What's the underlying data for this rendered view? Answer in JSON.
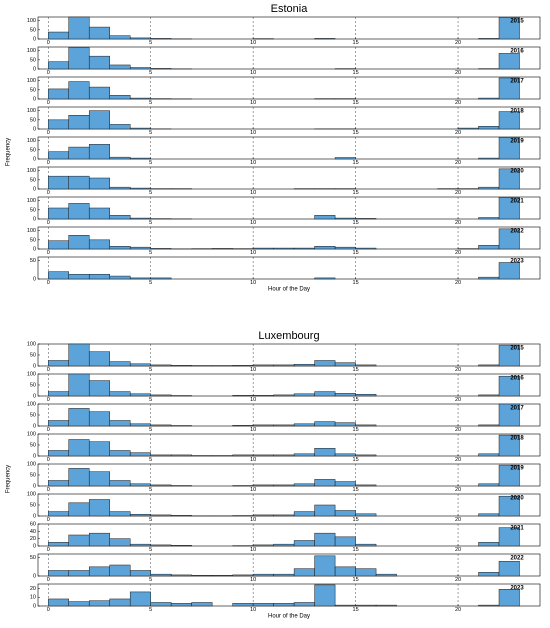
{
  "chart_data": [
    {
      "type": "histogram",
      "title": "Estonia",
      "xlabel": "Hour of the Day",
      "ylabel": "Frequency",
      "color": "#5ba3d9",
      "grid": true,
      "bins": [
        0,
        1,
        2,
        3,
        4,
        5,
        6,
        7,
        8,
        9,
        10,
        11,
        12,
        13,
        14,
        15,
        16,
        17,
        18,
        19,
        20,
        21,
        22,
        23
      ],
      "xlim": [
        -0.5,
        24
      ],
      "xticks": [
        0,
        5,
        10,
        15,
        20
      ],
      "panels": [
        {
          "label": "2015",
          "ylim": [
            0,
            120
          ],
          "yticks": [
            0,
            50,
            100
          ],
          "values": [
            38,
            120,
            65,
            18,
            6,
            3,
            1,
            0,
            0,
            0,
            2,
            0,
            0,
            3,
            0,
            0,
            0,
            0,
            0,
            0,
            0,
            3,
            118
          ]
        },
        {
          "label": "2016",
          "ylim": [
            0,
            120
          ],
          "yticks": [
            0,
            50,
            100
          ],
          "values": [
            40,
            118,
            70,
            22,
            8,
            3,
            1,
            0,
            0,
            0,
            0,
            0,
            0,
            0,
            2,
            0,
            0,
            0,
            0,
            0,
            0,
            2,
            85
          ]
        },
        {
          "label": "2017",
          "ylim": [
            0,
            120
          ],
          "yticks": [
            0,
            50,
            100
          ],
          "values": [
            55,
            95,
            65,
            20,
            5,
            2,
            1,
            0,
            0,
            0,
            0,
            0,
            0,
            2,
            2,
            0,
            0,
            0,
            0,
            0,
            0,
            5,
            115
          ]
        },
        {
          "label": "2018",
          "ylim": [
            0,
            120
          ],
          "yticks": [
            0,
            50,
            100
          ],
          "values": [
            50,
            75,
            100,
            25,
            5,
            1,
            0,
            0,
            0,
            0,
            0,
            0,
            0,
            1,
            1,
            0,
            0,
            0,
            0,
            0,
            5,
            15,
            95
          ]
        },
        {
          "label": "2019",
          "ylim": [
            0,
            120
          ],
          "yticks": [
            0,
            50,
            100
          ],
          "values": [
            40,
            65,
            80,
            10,
            5,
            0,
            0,
            0,
            0,
            0,
            0,
            0,
            0,
            0,
            8,
            0,
            0,
            0,
            0,
            0,
            0,
            5,
            118
          ]
        },
        {
          "label": "2020",
          "ylim": [
            0,
            120
          ],
          "yticks": [
            0,
            50,
            100
          ],
          "values": [
            70,
            70,
            60,
            10,
            5,
            2,
            2,
            0,
            0,
            0,
            0,
            0,
            2,
            2,
            2,
            0,
            0,
            0,
            0,
            2,
            2,
            10,
            110
          ]
        },
        {
          "label": "2021",
          "ylim": [
            0,
            120
          ],
          "yticks": [
            0,
            50,
            100
          ],
          "values": [
            60,
            85,
            60,
            20,
            5,
            2,
            1,
            0,
            0,
            0,
            0,
            0,
            0,
            20,
            5,
            3,
            0,
            0,
            0,
            0,
            0,
            8,
            118
          ]
        },
        {
          "label": "2022",
          "ylim": [
            0,
            120
          ],
          "yticks": [
            0,
            50,
            100
          ],
          "values": [
            45,
            75,
            50,
            15,
            10,
            3,
            1,
            2,
            3,
            2,
            5,
            5,
            5,
            15,
            10,
            5,
            0,
            0,
            0,
            0,
            2,
            20,
            110
          ]
        },
        {
          "label": "2023",
          "ylim": [
            0,
            60
          ],
          "yticks": [
            0,
            50
          ],
          "values": [
            20,
            13,
            13,
            8,
            3,
            3,
            0,
            0,
            0,
            0,
            0,
            0,
            0,
            3,
            0,
            0,
            0,
            0,
            0,
            0,
            0,
            5,
            45
          ]
        }
      ]
    },
    {
      "type": "histogram",
      "title": "Luxembourg",
      "xlabel": "Hour of the Day",
      "ylabel": "Frequency",
      "color": "#5ba3d9",
      "grid": true,
      "bins": [
        0,
        1,
        2,
        3,
        4,
        5,
        6,
        7,
        8,
        9,
        10,
        11,
        12,
        13,
        14,
        15,
        16,
        17,
        18,
        19,
        20,
        21,
        22,
        23
      ],
      "xlim": [
        -0.5,
        24
      ],
      "xticks": [
        0,
        5,
        10,
        15,
        20
      ],
      "panels": [
        {
          "label": "2015",
          "ylim": [
            0,
            100
          ],
          "yticks": [
            0,
            50,
            100
          ],
          "values": [
            25,
            100,
            65,
            20,
            10,
            5,
            3,
            2,
            2,
            3,
            5,
            5,
            8,
            25,
            15,
            5,
            0,
            0,
            0,
            0,
            0,
            5,
            95
          ]
        },
        {
          "label": "2016",
          "ylim": [
            0,
            100
          ],
          "yticks": [
            0,
            50,
            100
          ],
          "values": [
            20,
            100,
            70,
            20,
            10,
            5,
            2,
            0,
            0,
            3,
            3,
            5,
            10,
            20,
            12,
            8,
            0,
            0,
            0,
            0,
            0,
            5,
            90
          ]
        },
        {
          "label": "2017",
          "ylim": [
            0,
            100
          ],
          "yticks": [
            0,
            50,
            100
          ],
          "values": [
            25,
            80,
            65,
            25,
            10,
            5,
            2,
            0,
            0,
            3,
            5,
            5,
            10,
            20,
            15,
            5,
            0,
            0,
            0,
            0,
            0,
            5,
            100
          ]
        },
        {
          "label": "2018",
          "ylim": [
            0,
            100
          ],
          "yticks": [
            0,
            50,
            100
          ],
          "values": [
            25,
            75,
            65,
            25,
            15,
            5,
            5,
            2,
            2,
            5,
            5,
            5,
            10,
            35,
            10,
            5,
            0,
            0,
            0,
            0,
            0,
            10,
            95
          ]
        },
        {
          "label": "2019",
          "ylim": [
            0,
            100
          ],
          "yticks": [
            0,
            50,
            100
          ],
          "values": [
            25,
            80,
            65,
            25,
            10,
            5,
            2,
            0,
            0,
            2,
            5,
            5,
            10,
            30,
            20,
            5,
            0,
            0,
            0,
            0,
            0,
            10,
            95
          ]
        },
        {
          "label": "2020",
          "ylim": [
            0,
            100
          ],
          "yticks": [
            0,
            50,
            100
          ],
          "values": [
            20,
            60,
            75,
            20,
            8,
            5,
            3,
            1,
            1,
            2,
            5,
            5,
            20,
            50,
            25,
            10,
            0,
            0,
            0,
            0,
            0,
            10,
            90
          ]
        },
        {
          "label": "2021",
          "ylim": [
            0,
            60
          ],
          "yticks": [
            0,
            20,
            40,
            60
          ],
          "values": [
            10,
            30,
            35,
            20,
            5,
            3,
            2,
            0,
            0,
            1,
            3,
            5,
            15,
            35,
            25,
            5,
            0,
            0,
            0,
            0,
            0,
            10,
            50
          ]
        },
        {
          "label": "2022",
          "ylim": [
            0,
            60
          ],
          "yticks": [
            0,
            50
          ],
          "values": [
            15,
            15,
            25,
            30,
            15,
            5,
            3,
            2,
            2,
            3,
            5,
            5,
            20,
            55,
            25,
            20,
            5,
            0,
            0,
            0,
            0,
            10,
            40
          ]
        },
        {
          "label": "2023",
          "ylim": [
            0,
            25
          ],
          "yticks": [
            0,
            10,
            20
          ],
          "values": [
            8,
            5,
            6,
            8,
            16,
            4,
            3,
            4,
            0,
            3,
            3,
            3,
            4,
            24,
            1,
            1,
            1,
            0,
            0,
            0,
            0,
            1,
            19
          ]
        }
      ]
    }
  ]
}
